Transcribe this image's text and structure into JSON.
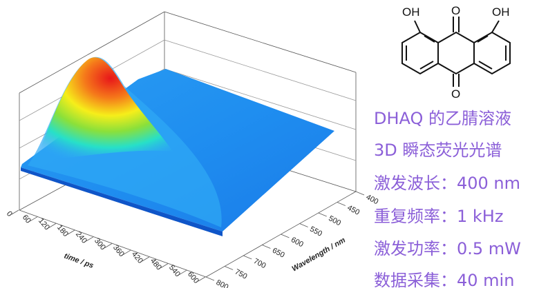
{
  "chart_data": {
    "type": "surface",
    "x_axis": {
      "label": "time / ps",
      "ticks": [
        "0",
        "60",
        "120",
        "180",
        "240",
        "300",
        "360",
        "420",
        "480",
        "540",
        "600"
      ],
      "range": [
        0,
        600
      ]
    },
    "y_axis": {
      "label": "Wavelength / nm",
      "ticks": [
        "400",
        "450",
        "500",
        "550",
        "600",
        "650",
        "700",
        "750",
        "800"
      ],
      "range": [
        400,
        800
      ]
    },
    "z_axis": {
      "label": "",
      "ticks": []
    },
    "colormap": [
      "#1a6fe0",
      "#2fa9f5",
      "#27e0c8",
      "#8be03a",
      "#f6ee1a",
      "#f58a14",
      "#e8161a"
    ],
    "peak": {
      "time_ps": 20,
      "wavelength_nm": 520,
      "relative_intensity": 1.0
    },
    "grid": false
  },
  "molecule": {
    "atoms": {
      "oh_left": "OH",
      "oh_right": "OH",
      "o_top": "O",
      "o_bottom": "O"
    }
  },
  "info": {
    "line1": "DHAQ 的乙腈溶液",
    "line2": "3D 瞬态荧光光谱",
    "line3": "激发波长：400 nm",
    "line4": "重复频率：1 kHz",
    "line5": "激发功率：0.5 mW",
    "line6": "数据采集：40 min"
  }
}
